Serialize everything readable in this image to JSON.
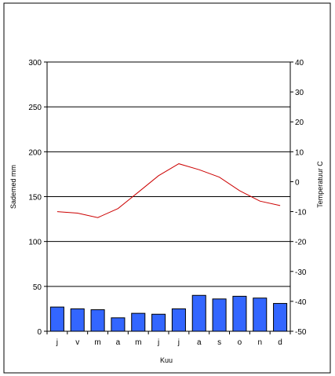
{
  "chart_data": {
    "type": "bar+line",
    "categories": [
      "j",
      "v",
      "m",
      "a",
      "m",
      "j",
      "j",
      "a",
      "s",
      "o",
      "n",
      "d"
    ],
    "xlabel": "Kuu",
    "series": [
      {
        "name": "Sademed mm",
        "type": "bar",
        "axis": "left",
        "color": "#3366ff",
        "values": [
          27,
          25,
          24,
          15,
          20,
          19,
          25,
          40,
          36,
          39,
          37,
          31
        ]
      },
      {
        "name": "Temperatuur C",
        "type": "line",
        "axis": "right",
        "color": "#cc0000",
        "values": [
          -10,
          -10.5,
          -12,
          -9,
          -3.5,
          2,
          6,
          4,
          1.5,
          -3,
          -6.5,
          -8
        ]
      }
    ],
    "y_left": {
      "label": "Sademed mm",
      "lim": [
        0,
        300
      ],
      "ticks": [
        "0",
        "50",
        "100",
        "150",
        "200",
        "250",
        "300"
      ]
    },
    "y_right": {
      "label": "Temperatuur C",
      "lim": [
        -50,
        40
      ],
      "ticks": [
        "-50",
        "-40",
        "-30",
        "-20",
        "-10",
        "0",
        "10",
        "20",
        "30",
        "40"
      ]
    },
    "grid": true,
    "legend": "none"
  }
}
